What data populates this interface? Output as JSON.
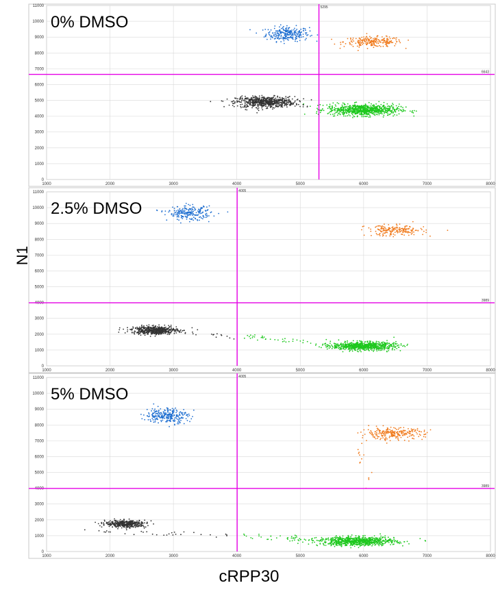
{
  "xlabel": "cRPP30",
  "ylabel": "N1",
  "colors": {
    "quadrant_line": "#e600e6",
    "double_positive": "#f07a1c",
    "n1_only": "#1f6fd1",
    "rpp30_only": "#1ec81e",
    "double_negative": "#333333",
    "grid": "#d9d9d9"
  },
  "chart_data": [
    {
      "type": "scatter",
      "title": "0% DMSO",
      "xlim": [
        1000,
        8000
      ],
      "ylim": [
        0,
        11000
      ],
      "xticks": [
        "1000",
        "2000",
        "3000",
        "4000",
        "5000",
        "6000",
        "7000",
        "8000"
      ],
      "yticks": [
        "0",
        "1000",
        "2000",
        "3000",
        "4000",
        "5000",
        "6000",
        "7000",
        "8000",
        "9000",
        "10000",
        "11000"
      ],
      "threshold_x": 5295,
      "threshold_y": 6643,
      "threshold_x_label": "5295",
      "threshold_y_label": "6643",
      "clusters": [
        {
          "group": "n1_only",
          "cx": 4800,
          "cy": 9200,
          "sx": 170,
          "sy": 230,
          "n": 260
        },
        {
          "group": "double_positive",
          "cx": 6150,
          "cy": 8700,
          "sx": 230,
          "sy": 160,
          "n": 230
        },
        {
          "group": "double_negative",
          "cx": 4450,
          "cy": 4900,
          "sx": 230,
          "sy": 170,
          "n": 650
        },
        {
          "group": "rpp30_only",
          "cx": 6000,
          "cy": 4400,
          "sx": 280,
          "sy": 180,
          "n": 800
        }
      ],
      "trails": [
        {
          "group": "double_negative",
          "x0": 4700,
          "y0": 4800,
          "x1": 5100,
          "y1": 4700,
          "n": 8
        },
        {
          "group": "rpp30_only",
          "x0": 5450,
          "y0": 4650,
          "x1": 5700,
          "y1": 4500,
          "n": 14
        }
      ]
    },
    {
      "type": "scatter",
      "title": "2.5% DMSO",
      "xlim": [
        1000,
        8000
      ],
      "ylim": [
        0,
        11000
      ],
      "xticks": [
        "1000",
        "2000",
        "3000",
        "4000",
        "5000",
        "6000",
        "7000",
        "8000"
      ],
      "yticks": [
        "0",
        "1000",
        "2000",
        "3000",
        "4000",
        "5000",
        "6000",
        "7000",
        "8000",
        "9000",
        "10000",
        "11000"
      ],
      "threshold_x": 4005,
      "threshold_y": 3989,
      "threshold_x_label": "4005",
      "threshold_y_label": "3989",
      "clusters": [
        {
          "group": "n1_only",
          "cx": 3250,
          "cy": 9650,
          "sx": 170,
          "sy": 220,
          "n": 220
        },
        {
          "group": "double_positive",
          "cx": 6500,
          "cy": 8550,
          "sx": 230,
          "sy": 170,
          "n": 200
        },
        {
          "group": "double_negative",
          "cx": 2700,
          "cy": 2250,
          "sx": 180,
          "sy": 130,
          "n": 550
        },
        {
          "group": "rpp30_only",
          "cx": 6000,
          "cy": 1250,
          "sx": 250,
          "sy": 130,
          "n": 750
        }
      ],
      "trails": [
        {
          "group": "double_negative",
          "x0": 2950,
          "y0": 2150,
          "x1": 4100,
          "y1": 1850,
          "n": 18
        },
        {
          "group": "rpp30_only",
          "x0": 4100,
          "y0": 1850,
          "x1": 5600,
          "y1": 1350,
          "n": 40
        }
      ]
    },
    {
      "type": "scatter",
      "title": "5% DMSO",
      "xlim": [
        1000,
        8000
      ],
      "ylim": [
        0,
        11000
      ],
      "xticks": [
        "1000",
        "2000",
        "3000",
        "4000",
        "5000",
        "6000",
        "7000",
        "8000"
      ],
      "yticks": [
        "0",
        "1000",
        "2000",
        "3000",
        "4000",
        "5000",
        "6000",
        "7000",
        "8000",
        "9000",
        "10000",
        "11000"
      ],
      "threshold_x": 4005,
      "threshold_y": 3989,
      "threshold_x_label": "4005",
      "threshold_y_label": "3989",
      "clusters": [
        {
          "group": "n1_only",
          "cx": 2900,
          "cy": 8600,
          "sx": 170,
          "sy": 240,
          "n": 260
        },
        {
          "group": "double_positive",
          "cx": 6450,
          "cy": 7450,
          "sx": 250,
          "sy": 180,
          "n": 250
        },
        {
          "group": "double_negative",
          "cx": 2250,
          "cy": 1750,
          "sx": 160,
          "sy": 110,
          "n": 420
        },
        {
          "group": "rpp30_only",
          "cx": 5900,
          "cy": 650,
          "sx": 300,
          "sy": 140,
          "n": 800
        }
      ],
      "trails": [
        {
          "group": "double_negative",
          "x0": 1600,
          "y0": 1300,
          "x1": 3900,
          "y1": 1000,
          "n": 30
        },
        {
          "group": "rpp30_only",
          "x0": 4100,
          "y0": 1000,
          "x1": 5500,
          "y1": 700,
          "n": 45
        },
        {
          "group": "double_positive",
          "x0": 6000,
          "y0": 3500,
          "x1": 6000,
          "y1": 7000,
          "n": 14
        }
      ]
    }
  ]
}
